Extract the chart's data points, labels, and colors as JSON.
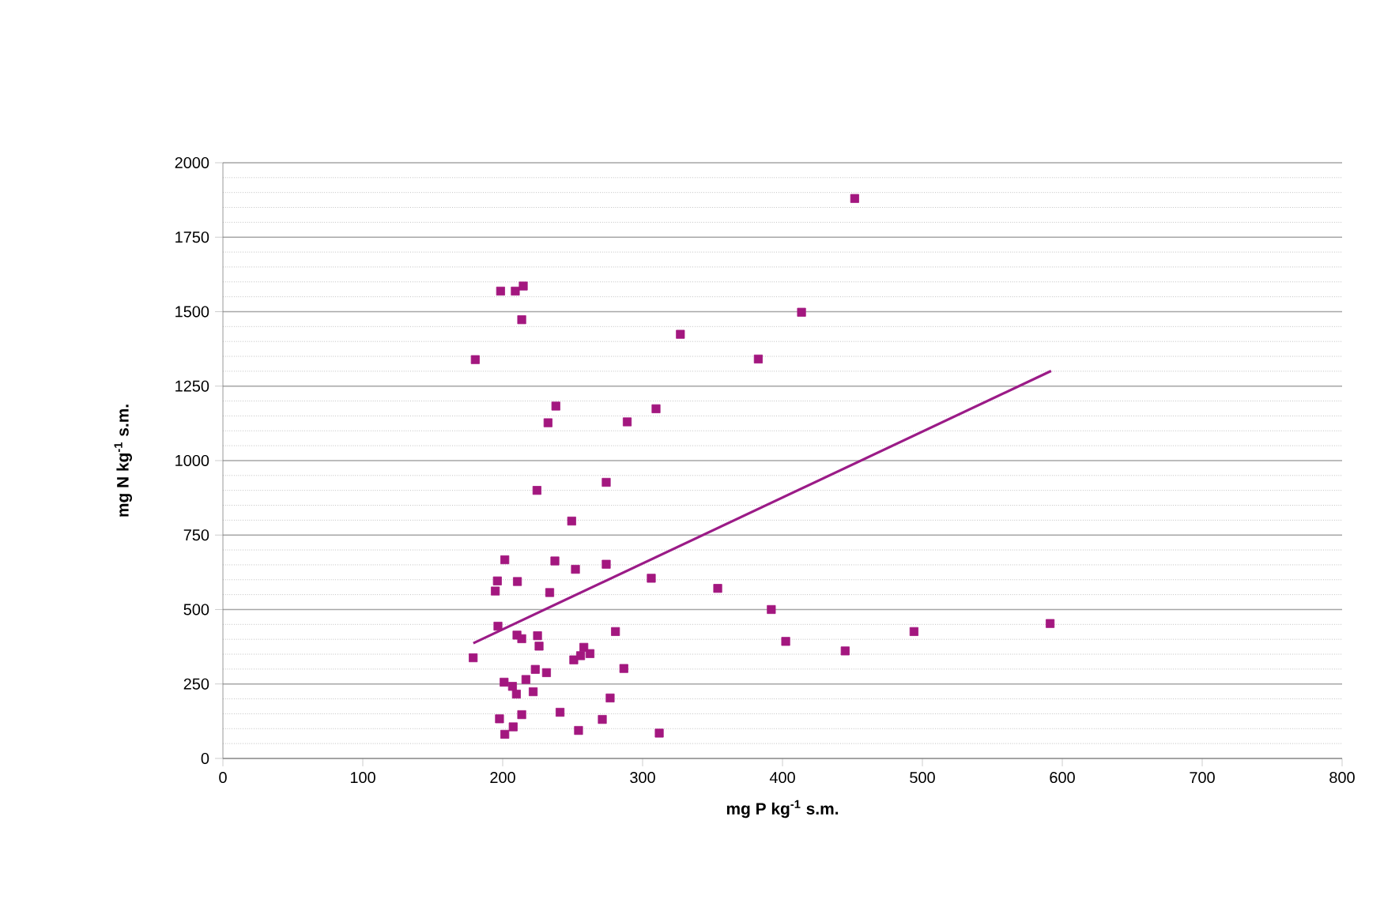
{
  "chart_data": {
    "type": "scatter",
    "xlabel": "**mg P kg$^{-1}$ s.m.**",
    "ylabel": "**mg N kg$^{-1}$ s.m.**",
    "xlim": [
      0,
      800
    ],
    "xticks": [
      0,
      100,
      200,
      300,
      400,
      500,
      600,
      700,
      800
    ],
    "ylim": [
      0,
      2000
    ],
    "yticks": [
      0,
      250,
      500,
      750,
      1000,
      1250,
      1500,
      1750,
      2000
    ],
    "grid": "y",
    "series": [
      {
        "marker": "square",
        "color": "#a3177f",
        "x": [
          451.6,
          198.5,
          209,
          214.7,
          213.6,
          413.6,
          327,
          180.4,
          382.7,
          238,
          232.4,
          289,
          309.6,
          274,
          224.5,
          249.3,
          201.5,
          237.3,
          252,
          274,
          196.2,
          210.5,
          194.7,
          233.6,
          306.2,
          353.7,
          392,
          196.6,
          210.2,
          213.6,
          224.9,
          226,
          280.6,
          402.3,
          444.8,
          494,
          591.3,
          178.9,
          250.8,
          258,
          255.7,
          262.4,
          286.6,
          201,
          207,
          216.6,
          223.3,
          231.3,
          209.8,
          221.8,
          276.8,
          241,
          197.7,
          213.6,
          207.5,
          201.5,
          254.2,
          271.2,
          311.9
        ],
        "values": [
          1880,
          1569,
          1569,
          1586,
          1473,
          1498,
          1424,
          1339,
          1341,
          1183,
          1127,
          1130,
          1174,
          927,
          900,
          797,
          667,
          663,
          635,
          652,
          596,
          594,
          562,
          557,
          605,
          571,
          500,
          444,
          414,
          402,
          412,
          377,
          426,
          393,
          361,
          426,
          453,
          338,
          331,
          373,
          345,
          352,
          302,
          256,
          242,
          265,
          299,
          288,
          216,
          224,
          203,
          155,
          133,
          147,
          106,
          81,
          94,
          131,
          85
        ]
      },
      {
        "type": "line",
        "marker": "none",
        "line_style": "solid",
        "color": "#9b1b87",
        "x": [
          179,
          592
        ],
        "values": [
          387,
          1301
        ]
      }
    ]
  }
}
